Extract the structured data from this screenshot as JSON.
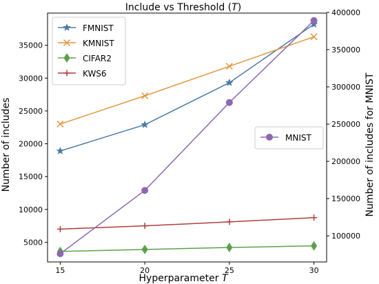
{
  "chart_data": {
    "type": "line",
    "title": "Include vs Threshold (T)",
    "xlabel": "Hyperparameter T",
    "ylabel": "Number of includes",
    "ylabel_right": "Number of includes for MNIST",
    "x": [
      15,
      20,
      25,
      30
    ],
    "xlim": [
      14.25,
      30.75
    ],
    "xticks": [
      15,
      20,
      25,
      30
    ],
    "ylim": [
      2000,
      39900
    ],
    "yticks": [
      5000,
      10000,
      15000,
      20000,
      25000,
      30000,
      35000
    ],
    "ylim_right": [
      65000,
      399000
    ],
    "yticks_right": [
      100000,
      150000,
      200000,
      250000,
      300000,
      350000,
      400000
    ],
    "grid": false,
    "series": [
      {
        "name": "FMNIST",
        "axis": "left",
        "color": "#4a79a5",
        "marker": "star",
        "values": [
          18900,
          22900,
          29300,
          38200
        ]
      },
      {
        "name": "KMNIST",
        "axis": "left",
        "color": "#e0963b",
        "marker": "x",
        "values": [
          23000,
          27300,
          31800,
          36300
        ]
      },
      {
        "name": "CIFAR2",
        "axis": "left",
        "color": "#5ca04a",
        "marker": "diamond",
        "values": [
          3600,
          3900,
          4200,
          4450
        ]
      },
      {
        "name": "KWS6",
        "axis": "left",
        "color": "#b33b3b",
        "marker": "plus",
        "values": [
          7000,
          7500,
          8100,
          8750
        ]
      },
      {
        "name": "MNIST",
        "axis": "right",
        "color": "#8d68b1",
        "marker": "circle",
        "values": [
          76000,
          161000,
          279000,
          389000
        ]
      }
    ],
    "legend_left": {
      "placement": "upper-left",
      "entries": [
        "FMNIST",
        "KMNIST",
        "CIFAR2",
        "KWS6"
      ]
    },
    "legend_right": {
      "placement": "center-right",
      "entries": [
        "MNIST"
      ]
    }
  }
}
